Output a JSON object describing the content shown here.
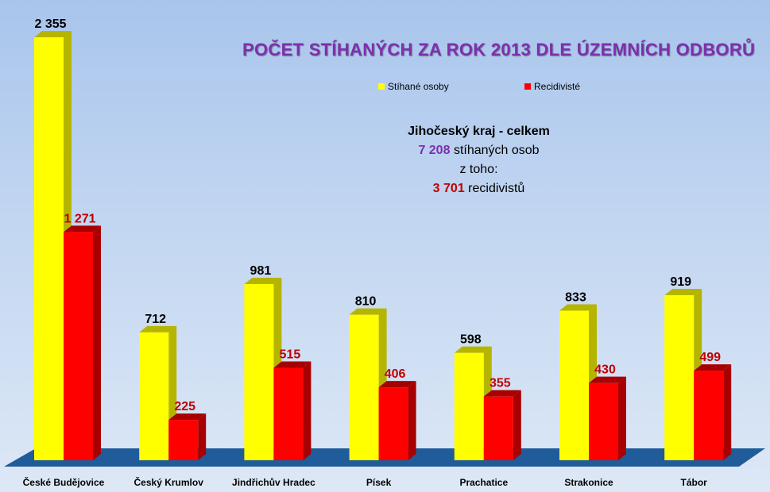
{
  "summary": {
    "heading": "Jihočeský kraj - celkem",
    "total_value": "7 208",
    "total_label": "stíhaných osob",
    "of_which": "z toho:",
    "recid_value": "3 701",
    "recid_label": "recidivistů"
  },
  "chart_data": {
    "type": "bar",
    "title": "Počet stíhaných za rok 2013 dle územních odborů",
    "categories": [
      "České Budějovice",
      "Český Krumlov",
      "Jindřichův Hradec",
      "Písek",
      "Prachatice",
      "Strakonice",
      "Tábor"
    ],
    "series": [
      {
        "name": "Stíhané osoby",
        "values": [
          2355,
          712,
          981,
          810,
          598,
          833,
          919
        ],
        "labels": [
          "2 355",
          "712",
          "981",
          "810",
          "598",
          "833",
          "919"
        ],
        "color": "#ffff00",
        "side_color": "#b5b500",
        "label_color": "#000000"
      },
      {
        "name": "Recidivisté",
        "values": [
          1271,
          225,
          515,
          406,
          355,
          430,
          499
        ],
        "labels": [
          "1 271",
          "225",
          "515",
          "406",
          "355",
          "430",
          "499"
        ],
        "color": "#ff0000",
        "side_color": "#a80000",
        "label_color": "#c00000"
      }
    ],
    "floor_color": "#1f5c99",
    "legend_position": "top",
    "grid": false,
    "ylim": [
      0,
      2400
    ]
  }
}
